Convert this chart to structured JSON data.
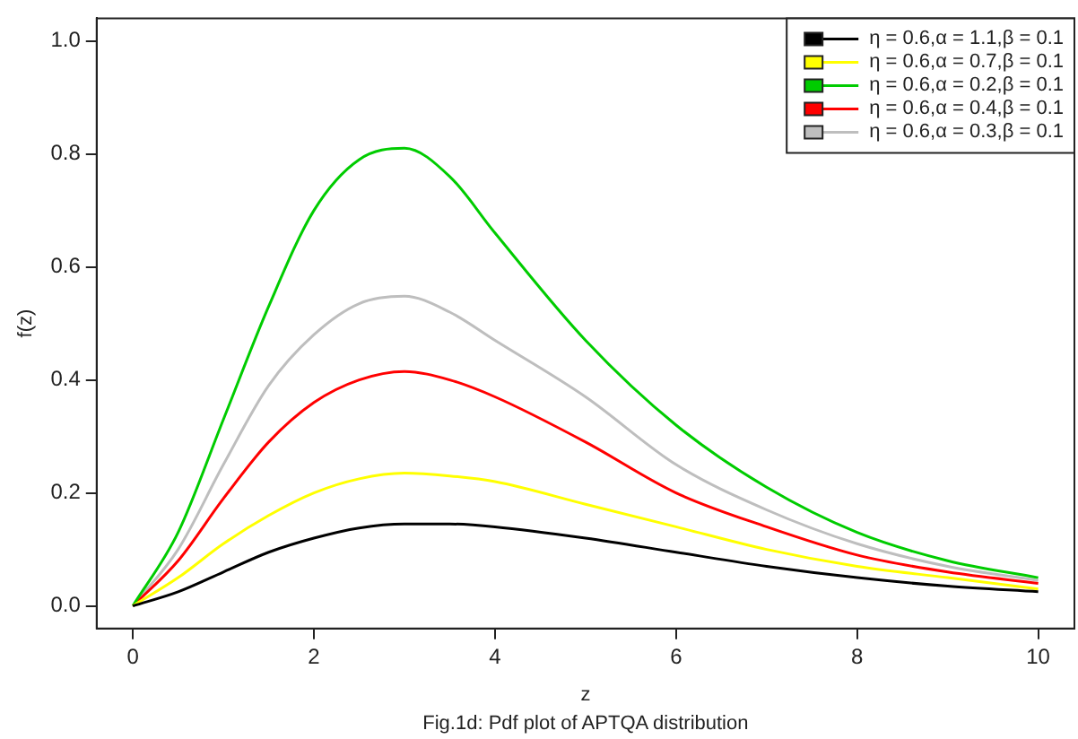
{
  "chart_data": {
    "type": "line",
    "xlabel": "z",
    "ylabel": "f(z)",
    "annotations": [
      "Fig.1d: Pdf plot of APTQA distribution"
    ],
    "x": [
      0,
      0.5,
      1,
      1.5,
      2,
      2.5,
      3,
      3.5,
      4,
      5,
      6,
      7,
      8,
      9,
      10
    ],
    "xlim": [
      -0.4,
      10.4
    ],
    "xticks": [
      0,
      2,
      4,
      6,
      8,
      10
    ],
    "ylim": [
      -0.04,
      1.04
    ],
    "yticks": [
      {
        "value": 0,
        "label": "0.0"
      },
      0.2,
      0.4,
      0.6,
      0.8,
      {
        "value": 1,
        "label": "1.0"
      }
    ],
    "grid": false,
    "legend": "top right",
    "marker": "none",
    "line_style": "solid",
    "series": [
      {
        "name": "η = 0.6,α = 1.1,β = 0.1",
        "color": "#000000",
        "values": [
          0,
          0.025,
          0.06,
          0.095,
          0.12,
          0.138,
          0.145,
          0.145,
          0.14,
          0.12,
          0.095,
          0.07,
          0.05,
          0.035,
          0.025
        ]
      },
      {
        "name": "η = 0.6,α = 0.7,β = 0.1",
        "color": "#ffff00",
        "values": [
          0,
          0.05,
          0.11,
          0.16,
          0.2,
          0.225,
          0.235,
          0.23,
          0.22,
          0.18,
          0.14,
          0.1,
          0.07,
          0.05,
          0.03
        ]
      },
      {
        "name": "η = 0.6,α = 0.2,β = 0.1",
        "color": "#00cc00",
        "values": [
          0,
          0.13,
          0.33,
          0.53,
          0.7,
          0.79,
          0.81,
          0.76,
          0.66,
          0.47,
          0.32,
          0.21,
          0.13,
          0.08,
          0.05
        ]
      },
      {
        "name": "η = 0.6,α = 0.4,β = 0.1",
        "color": "#ff0000",
        "values": [
          0,
          0.08,
          0.19,
          0.29,
          0.36,
          0.4,
          0.415,
          0.4,
          0.37,
          0.29,
          0.2,
          0.14,
          0.09,
          0.06,
          0.04
        ]
      },
      {
        "name": "η = 0.6,α = 0.3,β = 0.1",
        "color": "#bebebe",
        "values": [
          0,
          0.1,
          0.25,
          0.39,
          0.48,
          0.535,
          0.548,
          0.52,
          0.47,
          0.37,
          0.25,
          0.17,
          0.11,
          0.07,
          0.045
        ]
      }
    ]
  }
}
